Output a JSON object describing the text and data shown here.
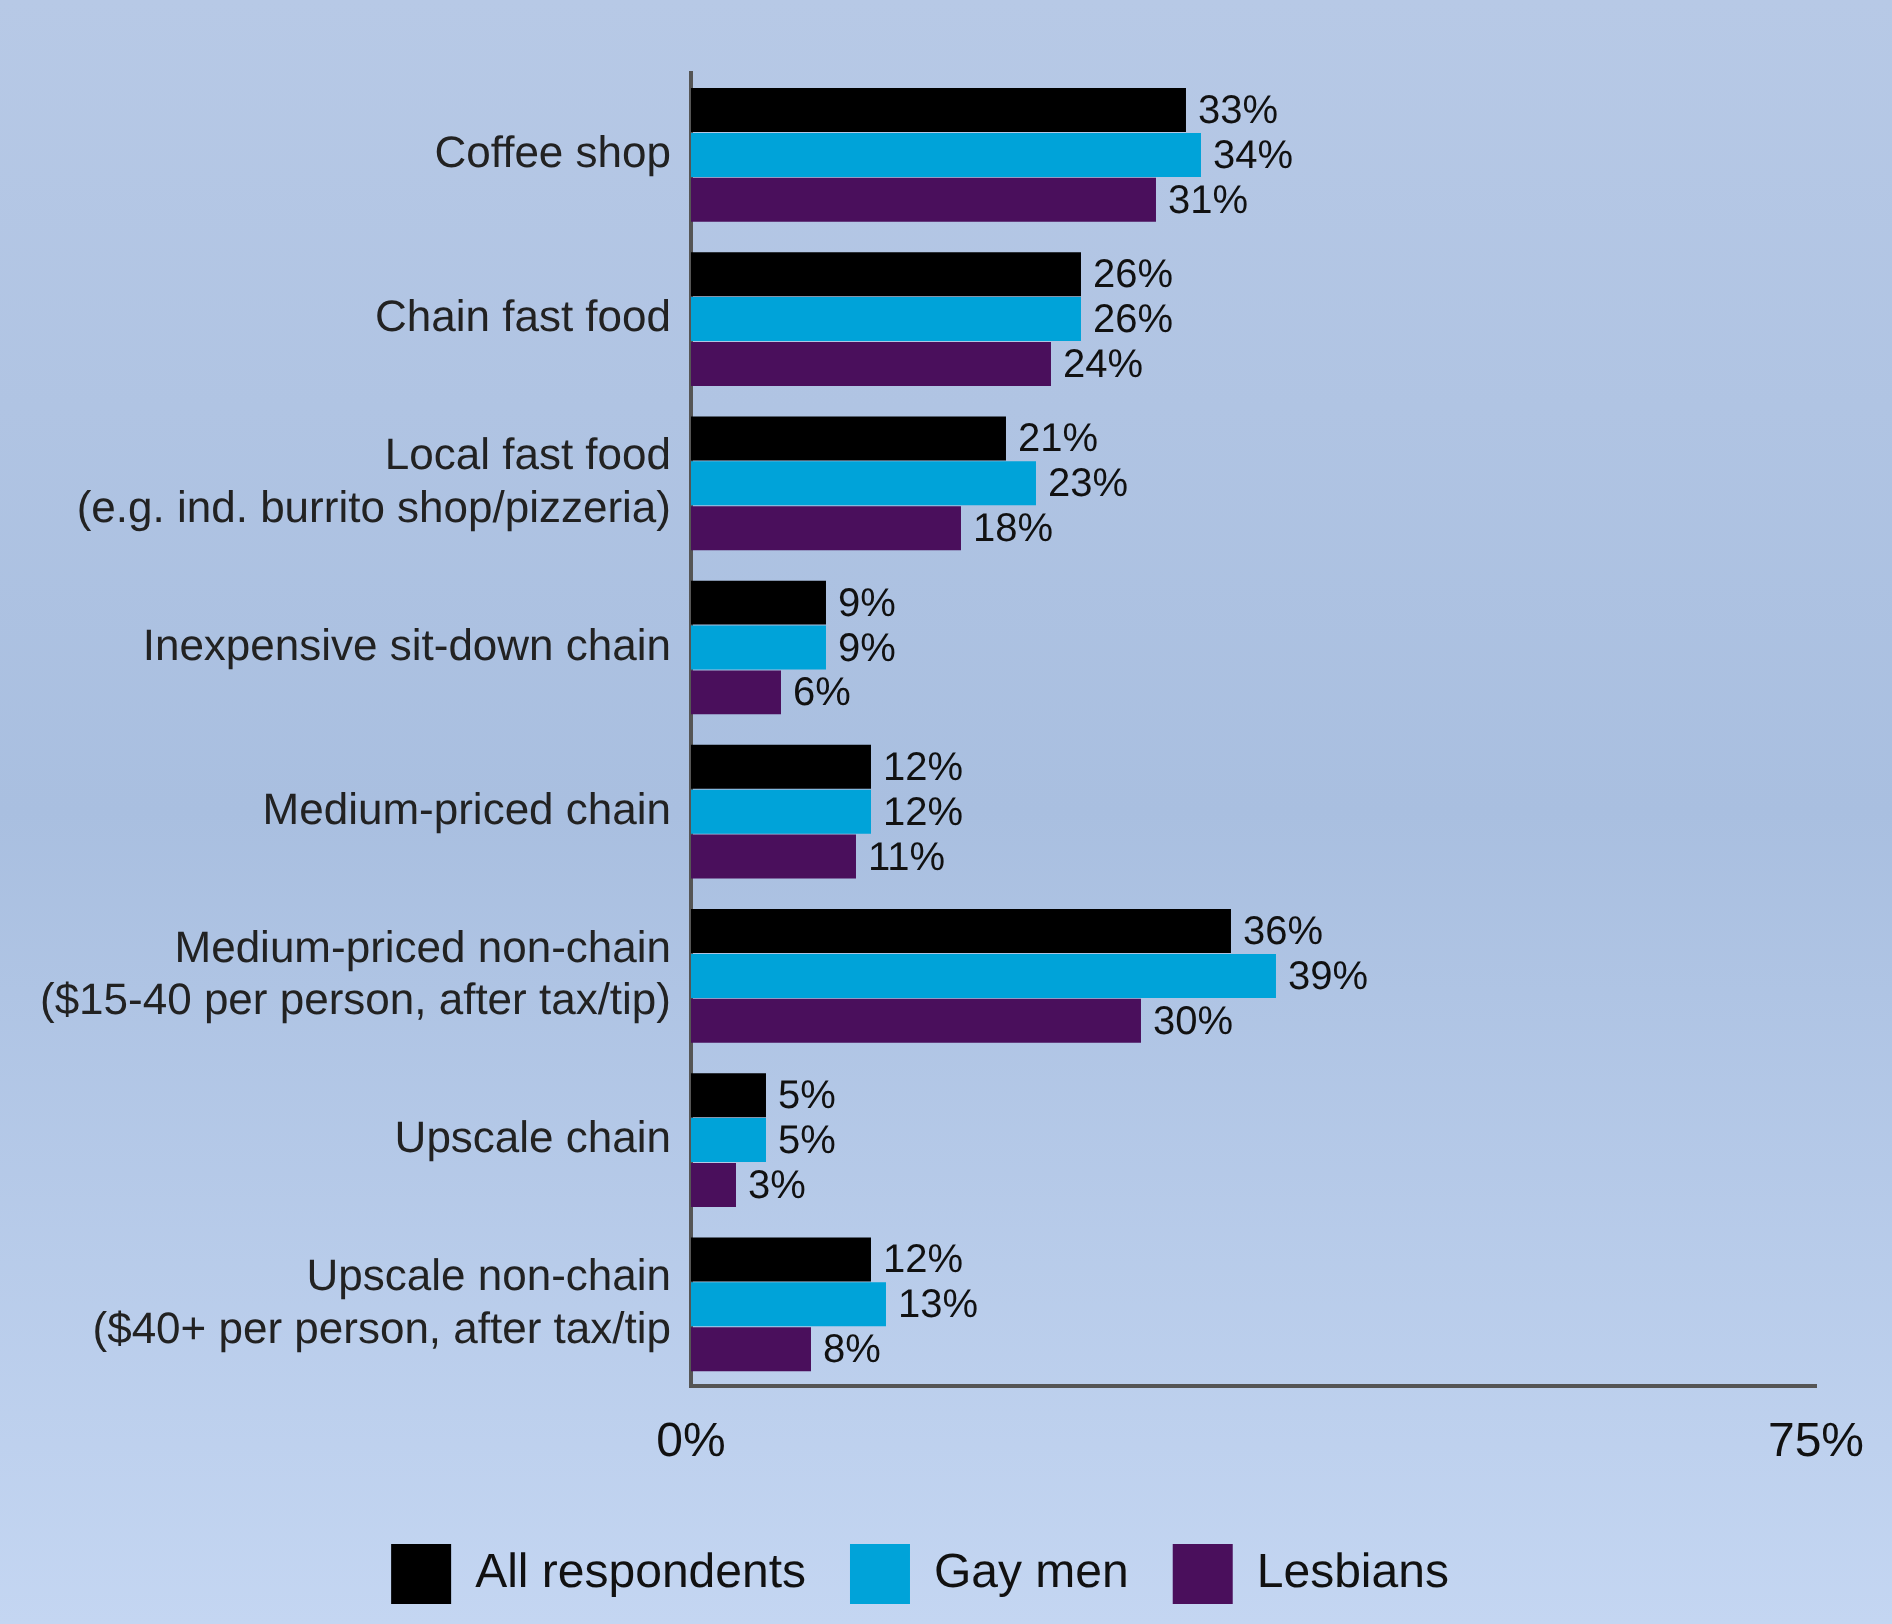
{
  "chart_data": {
    "type": "bar",
    "orientation": "horizontal",
    "categories": [
      "Coffee shop",
      "Chain fast food",
      "Local fast food\n(e.g. ind. burrito shop/pizzeria)",
      "Inexpensive sit-down chain",
      "Medium-priced chain",
      "Medium-priced non-chain\n($15-40 per person, after tax/tip)",
      "Upscale chain",
      "Upscale non-chain\n($40+ per person, after tax/tip"
    ],
    "series": [
      {
        "name": "All respondents",
        "color": "#000000",
        "values": [
          33,
          26,
          21,
          9,
          12,
          36,
          5,
          12
        ],
        "value_labels": [
          "33%",
          "26%",
          "21%",
          "9%",
          "12%",
          "36%",
          "5%",
          "12%"
        ]
      },
      {
        "name": "Gay men",
        "color": "#00a3d9",
        "values": [
          34,
          26,
          23,
          9,
          12,
          39,
          5,
          13
        ],
        "value_labels": [
          "34%",
          "26%",
          "23%",
          "9%",
          "12%",
          "39%",
          "5%",
          "13%"
        ]
      },
      {
        "name": "Lesbians",
        "color": "#4a0f5c",
        "values": [
          31,
          24,
          18,
          6,
          11,
          30,
          3,
          8
        ],
        "value_labels": [
          "31%",
          "24%",
          "18%",
          "6%",
          "11%",
          "30%",
          "3%",
          "8%"
        ]
      }
    ],
    "xlim": [
      0,
      75
    ],
    "xticks": [
      {
        "value": 0,
        "label": "0%"
      },
      {
        "value": 75,
        "label": "75%"
      }
    ],
    "grid": false,
    "legend": "bottom"
  }
}
